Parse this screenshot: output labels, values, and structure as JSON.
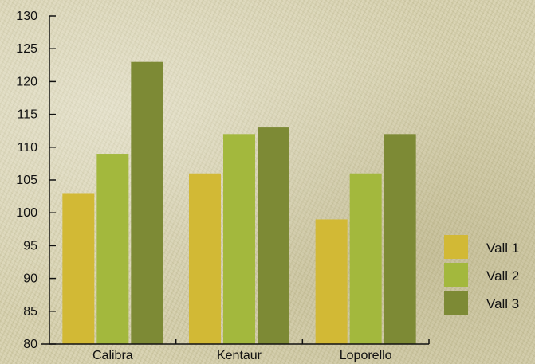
{
  "chart_data": {
    "type": "bar",
    "categories": [
      "Calibra",
      "Kentaur",
      "Loporello"
    ],
    "series": [
      {
        "name": "Vall 1",
        "values": [
          103,
          106,
          99
        ],
        "color": "#d2b935"
      },
      {
        "name": "Vall 2",
        "values": [
          109,
          112,
          106
        ],
        "color": "#a3b83d"
      },
      {
        "name": "Vall 3",
        "values": [
          123,
          113,
          112
        ],
        "color": "#7d8a35"
      }
    ],
    "ylim": [
      80,
      130
    ],
    "yticks": [
      80,
      85,
      90,
      95,
      100,
      105,
      110,
      115,
      120,
      125,
      130
    ],
    "title": "",
    "xlabel": "",
    "ylabel": "",
    "legend": "right",
    "grid": false
  }
}
